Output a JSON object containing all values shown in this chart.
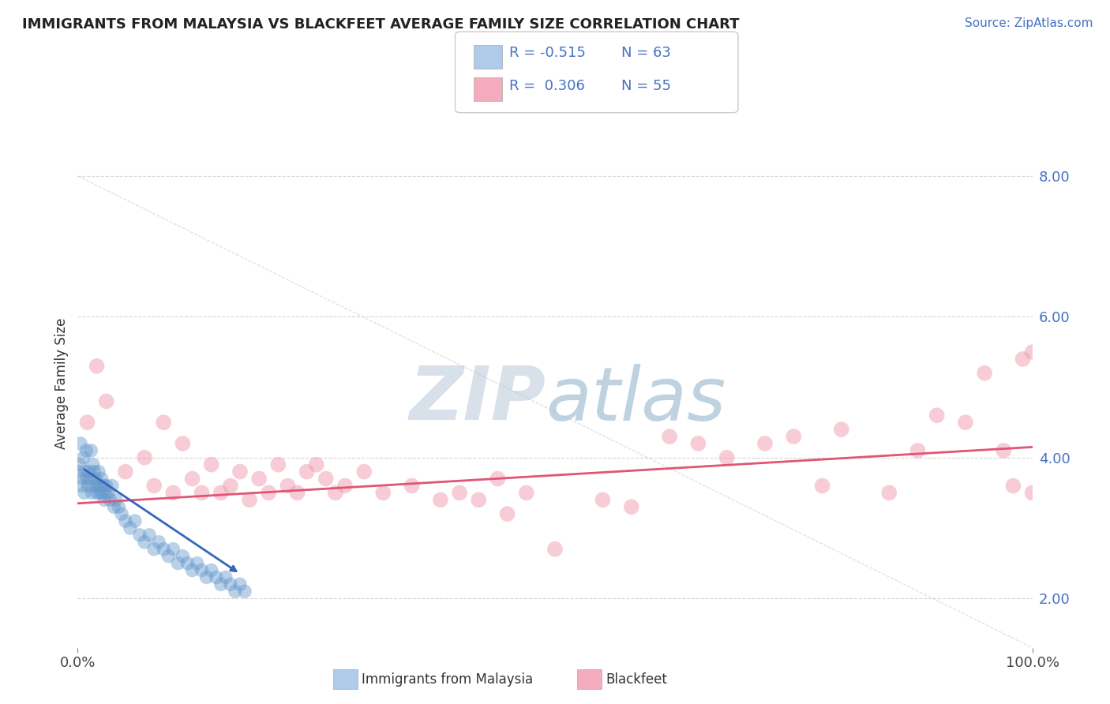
{
  "title": "IMMIGRANTS FROM MALAYSIA VS BLACKFEET AVERAGE FAMILY SIZE CORRELATION CHART",
  "source_text": "Source: ZipAtlas.com",
  "ylabel": "Average Family Size",
  "xmin": 0.0,
  "xmax": 100.0,
  "ymin": 1.3,
  "ymax": 8.8,
  "yticks": [
    2.0,
    4.0,
    6.0,
    8.0
  ],
  "xticks": [
    0.0,
    100.0
  ],
  "xticklabels": [
    "0.0%",
    "100.0%"
  ],
  "yticklabel_color": "#4472C4",
  "legend_entry1": {
    "color": "#AECBEA",
    "R": "-0.515",
    "N": "63",
    "label": "Immigrants from Malaysia"
  },
  "legend_entry2": {
    "color": "#F4ABBE",
    "R": "0.306",
    "N": "55",
    "label": "Blackfeet"
  },
  "blue_scatter_color": "#6699CC",
  "pink_scatter_color": "#F09AAE",
  "blue_line_color": "#3366BB",
  "pink_line_color": "#E05575",
  "watermark": "ZIPatlas",
  "watermark_color_r": 0.78,
  "watermark_color_g": 0.83,
  "watermark_color_b": 0.9,
  "background_color": "#FFFFFF",
  "grid_color": "#CCCCCC",
  "blue_points_x": [
    0.1,
    0.2,
    0.3,
    0.4,
    0.5,
    0.6,
    0.7,
    0.8,
    0.9,
    1.0,
    1.1,
    1.2,
    1.3,
    1.4,
    1.5,
    1.6,
    1.7,
    1.8,
    1.9,
    2.0,
    2.1,
    2.2,
    2.3,
    2.4,
    2.5,
    2.6,
    2.7,
    2.8,
    2.9,
    3.0,
    3.2,
    3.4,
    3.6,
    3.8,
    4.0,
    4.3,
    4.6,
    5.0,
    5.5,
    6.0,
    6.5,
    7.0,
    7.5,
    8.0,
    8.5,
    9.0,
    9.5,
    10.0,
    10.5,
    11.0,
    11.5,
    12.0,
    12.5,
    13.0,
    13.5,
    14.0,
    14.5,
    15.0,
    15.5,
    16.0,
    16.5,
    17.0,
    17.5
  ],
  "blue_points_y": [
    3.8,
    3.9,
    4.2,
    3.6,
    3.7,
    4.0,
    3.5,
    3.8,
    4.1,
    3.7,
    3.6,
    3.8,
    3.7,
    4.1,
    3.5,
    3.9,
    3.8,
    3.6,
    3.7,
    3.5,
    3.6,
    3.8,
    3.5,
    3.6,
    3.7,
    3.5,
    3.6,
    3.4,
    3.5,
    3.6,
    3.5,
    3.4,
    3.6,
    3.3,
    3.4,
    3.3,
    3.2,
    3.1,
    3.0,
    3.1,
    2.9,
    2.8,
    2.9,
    2.7,
    2.8,
    2.7,
    2.6,
    2.7,
    2.5,
    2.6,
    2.5,
    2.4,
    2.5,
    2.4,
    2.3,
    2.4,
    2.3,
    2.2,
    2.3,
    2.2,
    2.1,
    2.2,
    2.1
  ],
  "pink_points_x": [
    1.0,
    2.0,
    3.0,
    5.0,
    7.0,
    8.0,
    9.0,
    10.0,
    11.0,
    12.0,
    13.0,
    14.0,
    15.0,
    16.0,
    17.0,
    18.0,
    19.0,
    20.0,
    21.0,
    22.0,
    23.0,
    24.0,
    25.0,
    26.0,
    27.0,
    28.0,
    30.0,
    32.0,
    35.0,
    38.0,
    40.0,
    42.0,
    44.0,
    45.0,
    47.0,
    50.0,
    55.0,
    58.0,
    62.0,
    65.0,
    68.0,
    72.0,
    75.0,
    78.0,
    80.0,
    85.0,
    88.0,
    90.0,
    93.0,
    95.0,
    97.0,
    98.0,
    99.0,
    100.0,
    100.0
  ],
  "pink_points_y": [
    4.5,
    5.3,
    4.8,
    3.8,
    4.0,
    3.6,
    4.5,
    3.5,
    4.2,
    3.7,
    3.5,
    3.9,
    3.5,
    3.6,
    3.8,
    3.4,
    3.7,
    3.5,
    3.9,
    3.6,
    3.5,
    3.8,
    3.9,
    3.7,
    3.5,
    3.6,
    3.8,
    3.5,
    3.6,
    3.4,
    3.5,
    3.4,
    3.7,
    3.2,
    3.5,
    2.7,
    3.4,
    3.3,
    4.3,
    4.2,
    4.0,
    4.2,
    4.3,
    3.6,
    4.4,
    3.5,
    4.1,
    4.6,
    4.5,
    5.2,
    4.1,
    3.6,
    5.4,
    5.5,
    3.5
  ],
  "pink_trend_x": [
    0.0,
    100.0
  ],
  "pink_trend_y": [
    3.35,
    4.15
  ],
  "blue_trend_x0": 0.5,
  "blue_trend_y0": 3.85,
  "blue_trend_x1": 17.0,
  "blue_trend_y1": 2.35,
  "diag_line_x": [
    0.0,
    100.0
  ],
  "diag_line_y": [
    8.0,
    1.3
  ]
}
